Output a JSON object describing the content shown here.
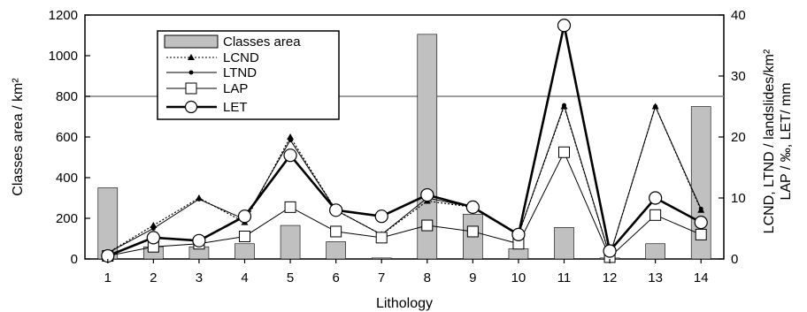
{
  "chart_data": {
    "type": "bar",
    "title": "",
    "xlabel": "Lithology",
    "ylabel_left": "Classes area / km²",
    "ylabel_right_line1": "LCND, LTND / landslides/km²",
    "ylabel_right_line2": "LAP / ‰, LET/ mm",
    "categories": [
      "1",
      "2",
      "3",
      "4",
      "5",
      "6",
      "7",
      "8",
      "9",
      "10",
      "11",
      "12",
      "13",
      "14"
    ],
    "ylim_left": [
      0,
      1200
    ],
    "ylim_right": [
      0,
      40
    ],
    "yticks_left": [
      "0",
      "200",
      "400",
      "600",
      "800",
      "1000",
      "1200"
    ],
    "yticks_right": [
      "0",
      "10",
      "20",
      "30",
      "40"
    ],
    "reference_line_left": 800,
    "grid": false,
    "legend_position": "top-left",
    "bars": {
      "name": "Classes area",
      "color": "#c0c0c0",
      "axis": "left",
      "values": [
        350,
        60,
        60,
        75,
        165,
        85,
        5,
        1105,
        220,
        50,
        155,
        5,
        75,
        750
      ]
    },
    "series": [
      {
        "name": "LCND",
        "axis": "right",
        "style": "dotted-triangle",
        "values": [
          1,
          5.5,
          10,
          6,
          20,
          8,
          4,
          9.5,
          8.5,
          4,
          25,
          0.5,
          25,
          8
        ]
      },
      {
        "name": "LTND",
        "axis": "right",
        "style": "thin-dot",
        "values": [
          1,
          5,
          9.8,
          6.5,
          19.5,
          8,
          4,
          10,
          8.5,
          4,
          25.2,
          0.5,
          25,
          8.2
        ]
      },
      {
        "name": "LAP",
        "axis": "right",
        "style": "square",
        "values": [
          0.5,
          2,
          2.5,
          3.7,
          8.5,
          4.5,
          3.5,
          5.5,
          4.5,
          2.5,
          17.5,
          0.3,
          7.2,
          4
        ]
      },
      {
        "name": "LET",
        "axis": "right",
        "style": "thick-circle",
        "values": [
          0.5,
          3.5,
          3,
          7,
          17,
          8,
          7,
          10.5,
          8.5,
          4,
          38.3,
          1.3,
          10,
          6
        ]
      }
    ]
  }
}
